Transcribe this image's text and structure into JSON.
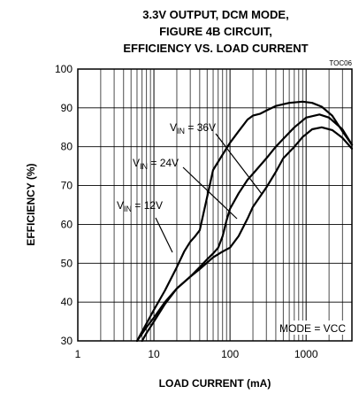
{
  "chart_data": {
    "type": "line",
    "title_lines": [
      "3.3V OUTPUT, DCM MODE,",
      "FIGURE 4B CIRCUIT,",
      "EFFICIENCY VS. LOAD CURRENT"
    ],
    "figure_code": "TOC06",
    "xlabel": "LOAD CURRENT (mA)",
    "ylabel": "EFFICIENCY (%)",
    "x_scale": "log",
    "xlim": [
      1,
      4000
    ],
    "ylim": [
      30,
      100
    ],
    "x_ticks": [
      1,
      10,
      100,
      1000
    ],
    "x_tick_labels": [
      "1",
      "10",
      "100",
      "1000"
    ],
    "y_ticks": [
      30,
      40,
      50,
      60,
      70,
      80,
      90,
      100
    ],
    "y_tick_labels": [
      "30",
      "40",
      "50",
      "60",
      "70",
      "80",
      "90",
      "100"
    ],
    "grid": true,
    "mode_note": "MODE = VCC",
    "series": [
      {
        "name": "VIN = 12V",
        "label_main": "V",
        "label_sub": "IN",
        "label_rest": " = 12V",
        "points": [
          [
            6,
            30
          ],
          [
            8,
            34.5
          ],
          [
            10,
            38
          ],
          [
            14,
            43
          ],
          [
            20,
            49
          ],
          [
            25,
            53
          ],
          [
            30,
            55.5
          ],
          [
            35,
            57
          ],
          [
            40,
            58.5
          ],
          [
            50,
            67
          ],
          [
            60,
            74
          ],
          [
            80,
            78
          ],
          [
            100,
            81
          ],
          [
            130,
            84
          ],
          [
            170,
            87
          ],
          [
            200,
            88
          ],
          [
            250,
            88.5
          ],
          [
            300,
            89.3
          ],
          [
            400,
            90.5
          ],
          [
            600,
            91.3
          ],
          [
            900,
            91.6
          ],
          [
            1200,
            91.3
          ],
          [
            1600,
            90.3
          ],
          [
            2200,
            88
          ],
          [
            3000,
            84
          ],
          [
            4000,
            80.5
          ]
        ]
      },
      {
        "name": "VIN = 24V",
        "label_main": "V",
        "label_sub": "IN",
        "label_rest": " = 24V",
        "points": [
          [
            6,
            30
          ],
          [
            8,
            33.5
          ],
          [
            10,
            36
          ],
          [
            14,
            40
          ],
          [
            20,
            43.5
          ],
          [
            30,
            46.5
          ],
          [
            40,
            49
          ],
          [
            50,
            51
          ],
          [
            60,
            52.5
          ],
          [
            70,
            54
          ],
          [
            80,
            57
          ],
          [
            90,
            61
          ],
          [
            100,
            64
          ],
          [
            130,
            68
          ],
          [
            170,
            71.5
          ],
          [
            200,
            73
          ],
          [
            300,
            77
          ],
          [
            400,
            80
          ],
          [
            500,
            82
          ],
          [
            700,
            85
          ],
          [
            1000,
            87.5
          ],
          [
            1500,
            88.3
          ],
          [
            2000,
            87.5
          ],
          [
            3000,
            84.5
          ],
          [
            4000,
            80.5
          ]
        ]
      },
      {
        "name": "VIN = 36V",
        "label_main": "V",
        "label_sub": "IN",
        "label_rest": " = 36V",
        "points": [
          [
            7,
            30
          ],
          [
            8,
            32
          ],
          [
            10,
            35
          ],
          [
            14,
            39.5
          ],
          [
            20,
            43.5
          ],
          [
            30,
            46.5
          ],
          [
            40,
            48.5
          ],
          [
            60,
            51.5
          ],
          [
            80,
            53
          ],
          [
            100,
            54
          ],
          [
            130,
            57
          ],
          [
            170,
            61.5
          ],
          [
            200,
            64.5
          ],
          [
            300,
            69.5
          ],
          [
            400,
            73.5
          ],
          [
            500,
            77
          ],
          [
            700,
            80
          ],
          [
            900,
            82.5
          ],
          [
            1200,
            84.5
          ],
          [
            1600,
            85
          ],
          [
            2200,
            84.3
          ],
          [
            3000,
            82.3
          ],
          [
            4000,
            79.5
          ]
        ]
      }
    ]
  }
}
